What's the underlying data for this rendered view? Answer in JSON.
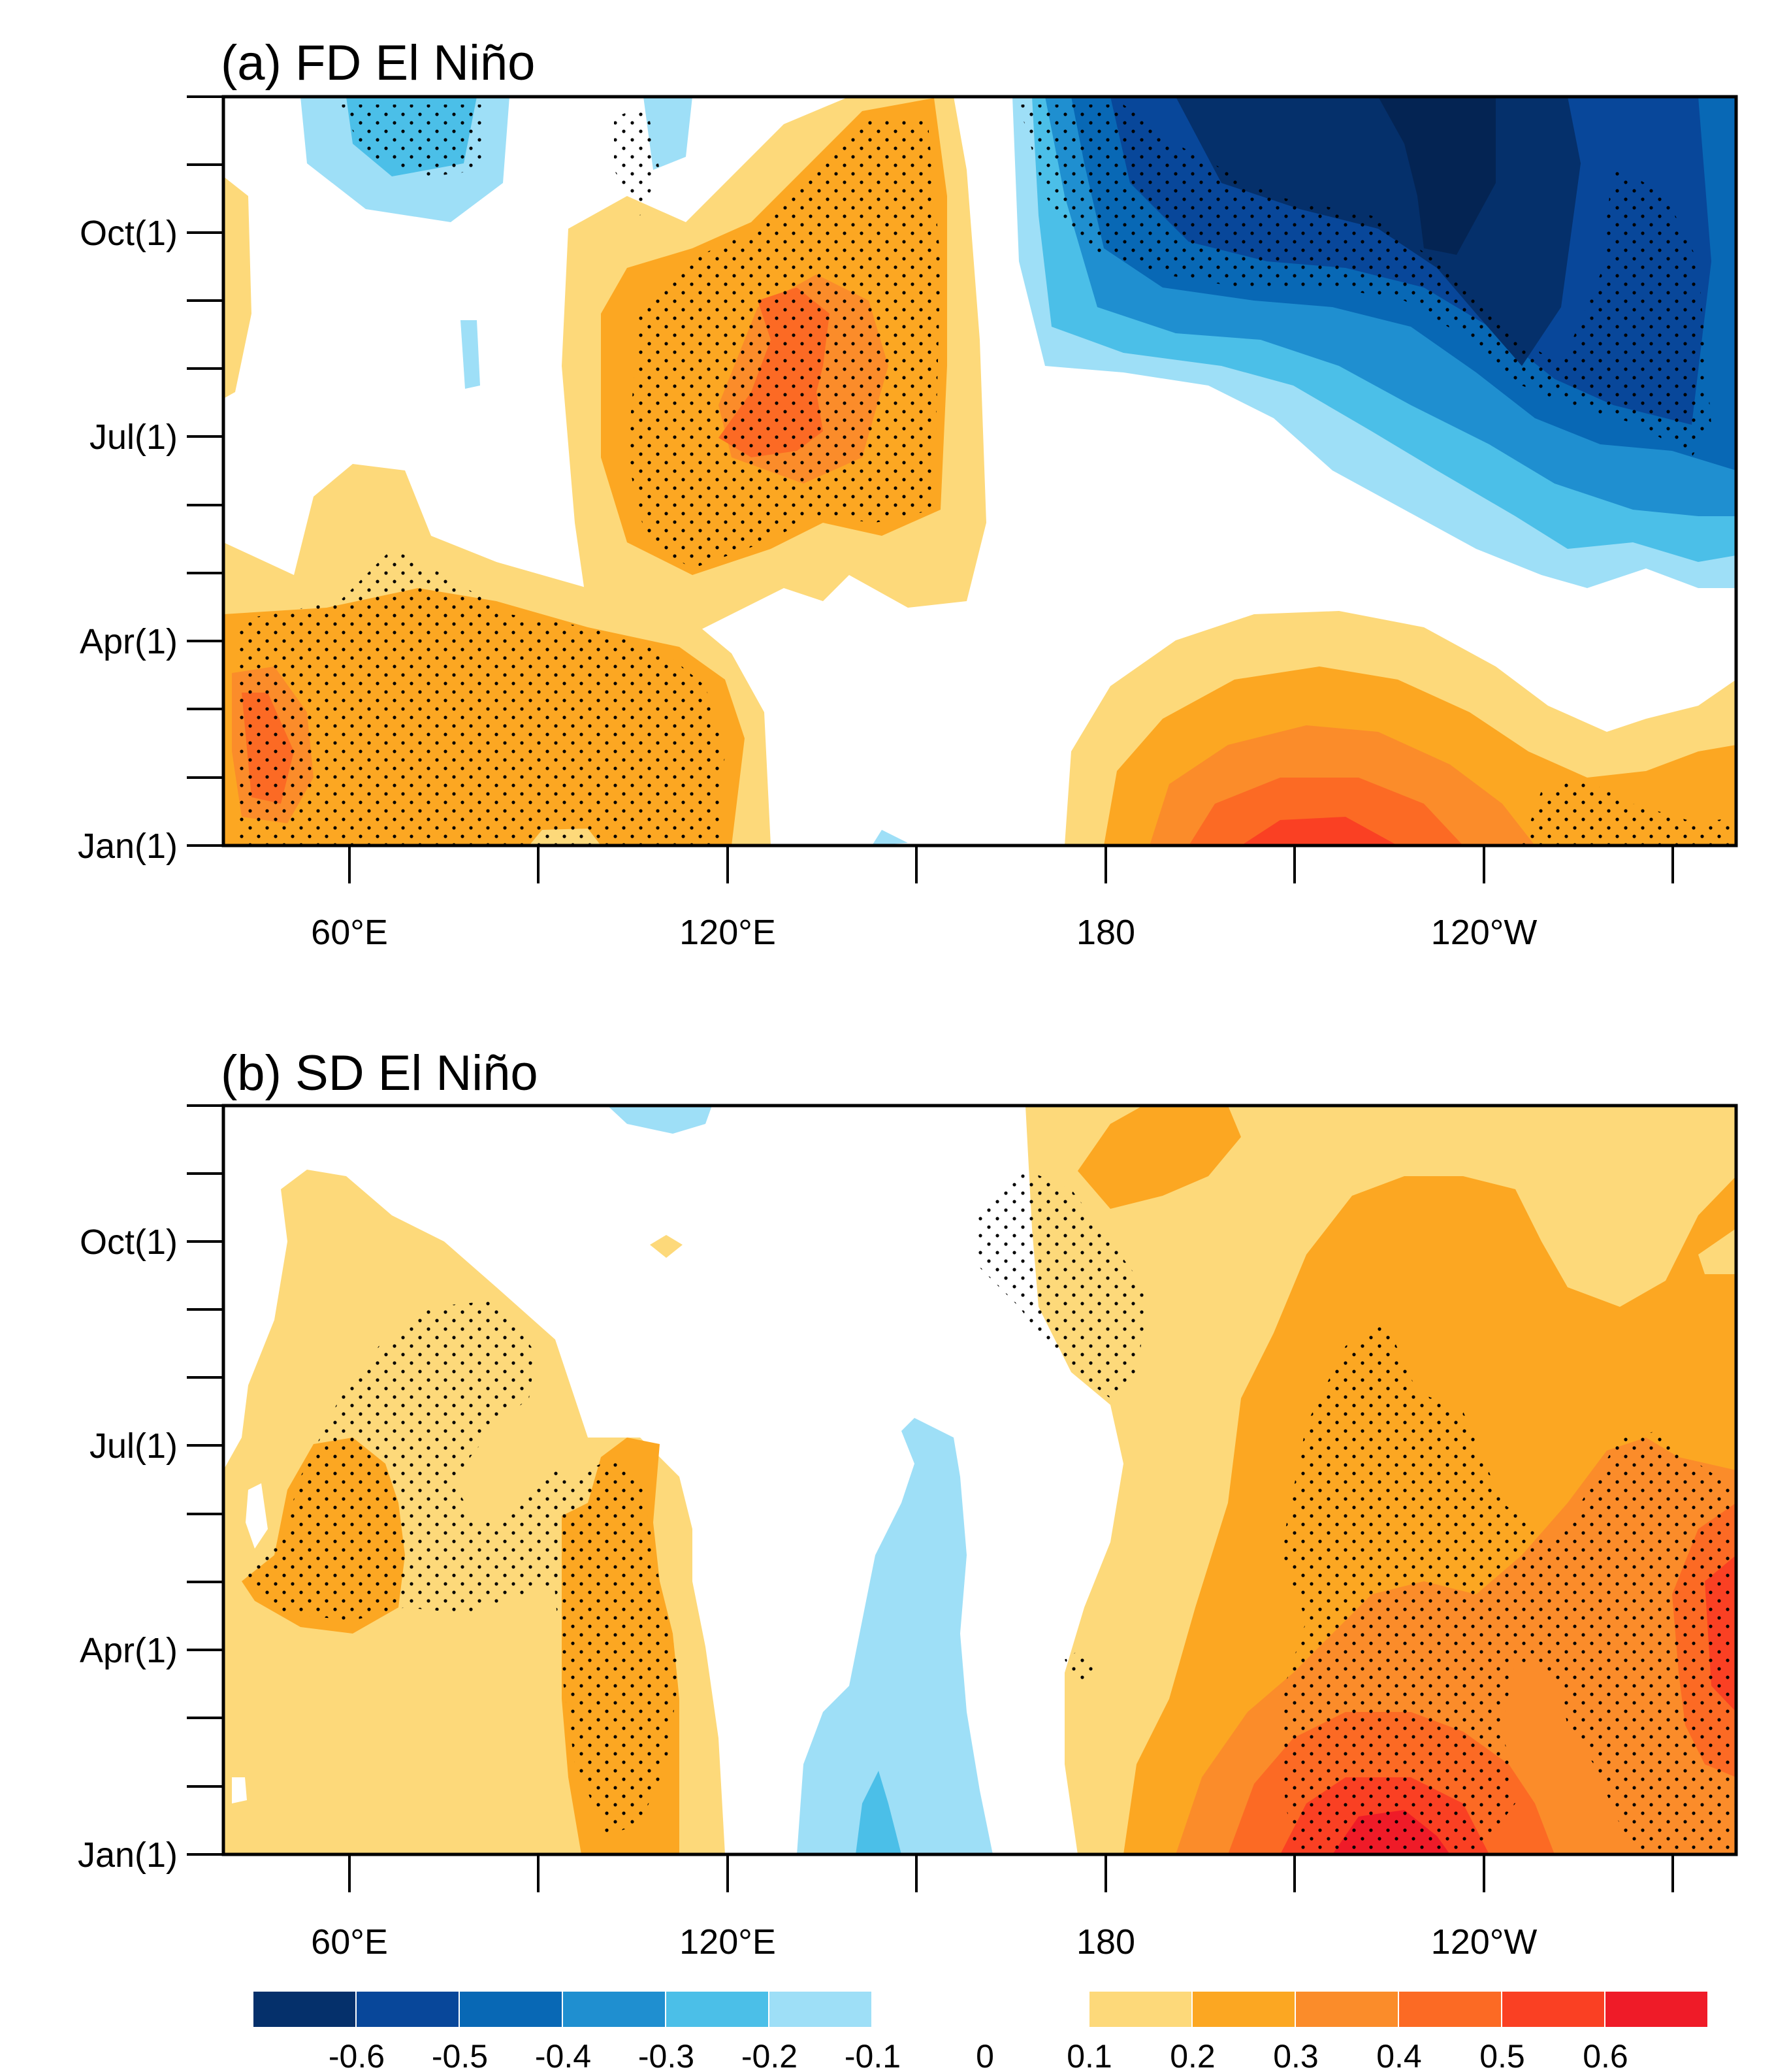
{
  "chart_data": {
    "type": "heatmap",
    "colorbar": {
      "negative_labels": [
        "-0.6",
        "-0.5",
        "-0.4",
        "-0.3",
        "-0.2",
        "-0.1"
      ],
      "zero_label": "0",
      "positive_labels": [
        "0.1",
        "0.2",
        "0.3",
        "0.4",
        "0.5",
        "0.6"
      ],
      "negative_colors": [
        "#05306b",
        "#08479a",
        "#0868b5",
        "#1f8fd0",
        "#4bbfe8",
        "#9edff7"
      ],
      "positive_colors": [
        "#fdd97a",
        "#fca722",
        "#fb8c2a",
        "#fc6a24",
        "#fa4023",
        "#ef1b28"
      ]
    },
    "panels": [
      {
        "title": "(a) FD El Niño",
        "x_tick_labels": [
          "60°E",
          "120°E",
          "180",
          "120°W"
        ],
        "y_tick_labels": [
          "Oct(1)",
          "Jul(1)",
          "Apr(1)",
          "Jan(1)"
        ],
        "x_range_deg": [
          40,
          280
        ],
        "y_range_months": [
          0,
          11
        ],
        "stippling": "significant regions"
      },
      {
        "title": "(b) SD El Niño",
        "x_tick_labels": [
          "60°E",
          "120°E",
          "180",
          "120°W"
        ],
        "y_tick_labels": [
          "Oct(1)",
          "Jul(1)",
          "Apr(1)",
          "Jan(1)"
        ],
        "x_range_deg": [
          40,
          280
        ],
        "y_range_months": [
          0,
          11
        ],
        "stippling": "significant regions"
      }
    ]
  }
}
